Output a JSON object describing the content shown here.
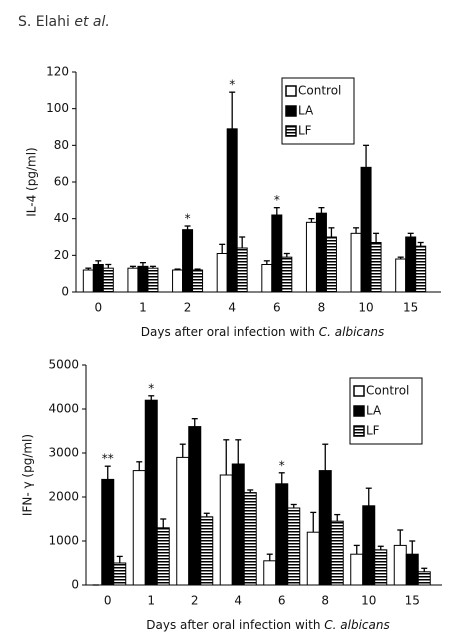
{
  "header": {
    "author": "S. Elahi",
    "suffix": "et al."
  },
  "chart_data": [
    {
      "type": "bar",
      "ylabel": "IL-4 (pg/ml)",
      "xlabel": [
        "Days after oral infection with ",
        "C. albicans"
      ],
      "categories": [
        "0",
        "1",
        "2",
        "4",
        "6",
        "8",
        "10",
        "15"
      ],
      "series": [
        {
          "name": "Control",
          "color": "#ffffff",
          "values": [
            12,
            13,
            12,
            21,
            15,
            38,
            32,
            18
          ],
          "errors": [
            1,
            1,
            0.5,
            5,
            2,
            2,
            3,
            1
          ]
        },
        {
          "name": "LA",
          "color": "#000000",
          "values": [
            15,
            14,
            34,
            89,
            42,
            43,
            68,
            30
          ],
          "errors": [
            2,
            2,
            2,
            20,
            4,
            3,
            12,
            2
          ]
        },
        {
          "name": "LF",
          "color": "#000000",
          "pattern": "horizontal-lines",
          "values": [
            13,
            13,
            12,
            24,
            19,
            30,
            27,
            25
          ],
          "errors": [
            2,
            1,
            0.5,
            6,
            2,
            5,
            5,
            2
          ]
        }
      ],
      "ylim": [
        0,
        120
      ],
      "yticks": [
        0,
        20,
        40,
        60,
        80,
        100,
        120
      ],
      "legend": "upper right",
      "annotations": [
        {
          "text": "*",
          "category": "2",
          "series": "LA"
        },
        {
          "text": "*",
          "category": "4",
          "series": "LA"
        },
        {
          "text": "*",
          "category": "6",
          "series": "LA"
        }
      ]
    },
    {
      "type": "bar",
      "ylabel": "IFN- γ (pg/ml)",
      "xlabel": [
        "Days after oral infection with ",
        "C. albicans"
      ],
      "categories": [
        "0",
        "1",
        "2",
        "4",
        "6",
        "8",
        "10",
        "15"
      ],
      "series": [
        {
          "name": "Control",
          "color": "#ffffff",
          "values": [
            0,
            2600,
            2900,
            2500,
            550,
            1200,
            700,
            900
          ],
          "errors": [
            0,
            200,
            300,
            800,
            150,
            450,
            200,
            350
          ]
        },
        {
          "name": "LA",
          "color": "#000000",
          "values": [
            2400,
            4200,
            3600,
            2750,
            2300,
            2600,
            1800,
            700
          ],
          "errors": [
            300,
            100,
            180,
            550,
            250,
            600,
            400,
            300
          ]
        },
        {
          "name": "LF",
          "color": "#000000",
          "pattern": "horizontal-lines",
          "values": [
            500,
            1300,
            1550,
            2100,
            1750,
            1450,
            800,
            300
          ],
          "errors": [
            150,
            200,
            80,
            60,
            80,
            150,
            80,
            80
          ]
        }
      ],
      "ylim": [
        0,
        5000
      ],
      "yticks": [
        0,
        1000,
        2000,
        3000,
        4000,
        5000
      ],
      "legend": "upper right",
      "annotations": [
        {
          "text": "**",
          "category": "0",
          "series": "LA"
        },
        {
          "text": "*",
          "category": "1",
          "series": "LA"
        },
        {
          "text": "*",
          "category": "6",
          "series": "LA"
        }
      ]
    }
  ]
}
